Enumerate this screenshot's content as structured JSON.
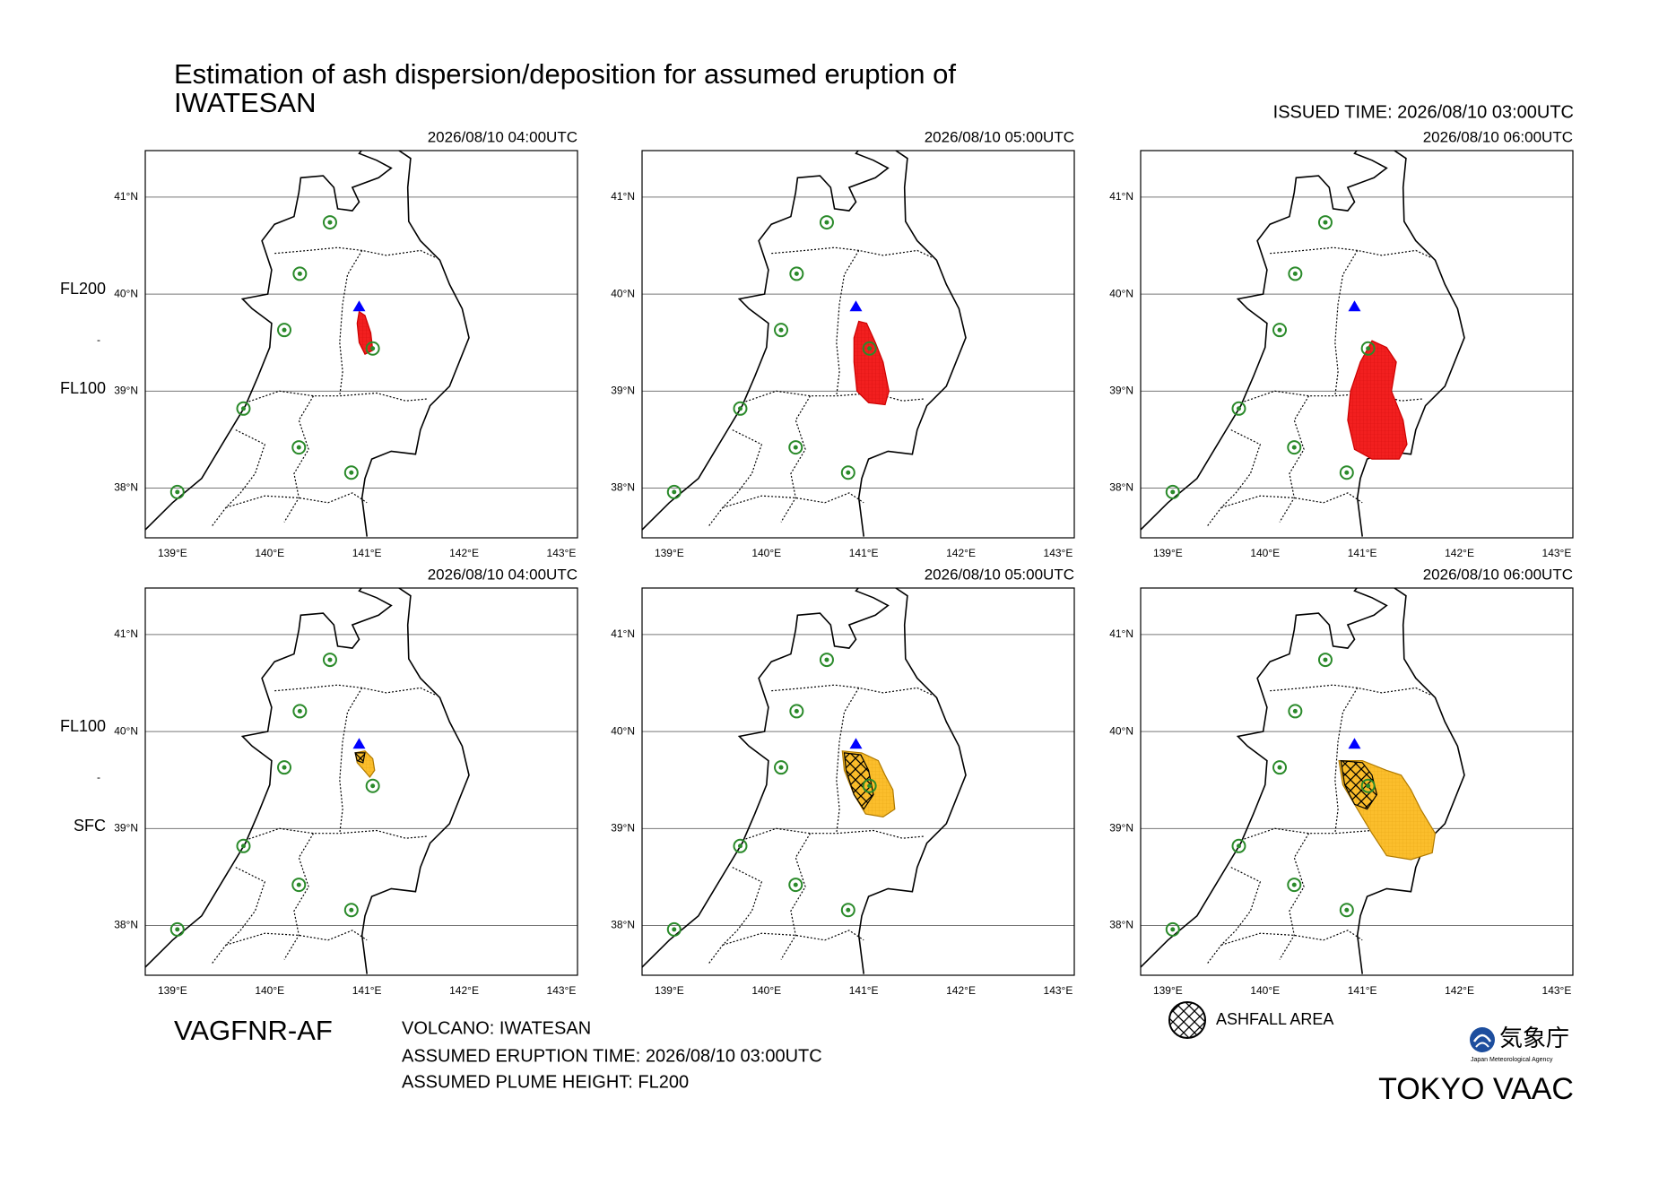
{
  "header": {
    "title": "Estimation of ash dispersion/deposition for assumed eruption of",
    "volcano_title": "IWATESAN",
    "issued": "ISSUED TIME: 2026/08/10 03:00UTC"
  },
  "rows": [
    {
      "top_label": "FL200",
      "separator": "-",
      "bottom_label": "FL100",
      "panels": [
        "2026/08/10 04:00UTC",
        "2026/08/10 05:00UTC",
        "2026/08/10 06:00UTC"
      ]
    },
    {
      "top_label": "FL100",
      "separator": "-",
      "bottom_label": "SFC",
      "panels": [
        "2026/08/10 04:00UTC",
        "2026/08/10 05:00UTC",
        "2026/08/10 06:00UTC"
      ]
    }
  ],
  "lon_labels": [
    "139°E",
    "140°E",
    "141°E",
    "142°E",
    "143°E"
  ],
  "lat_labels": [
    "38°N",
    "39°N",
    "40°N",
    "41°N"
  ],
  "footer": {
    "product": "VAGFNR-AF",
    "volcano": "VOLCANO: IWATESAN",
    "eruption_time": "ASSUMED ERUPTION TIME: 2026/08/10 03:00UTC",
    "plume_height": "ASSUMED PLUME HEIGHT: FL200",
    "legend": "ASHFALL AREA",
    "agency": "気象庁",
    "agency_en": "Japan Meteorological Agency",
    "vaac": "TOKYO VAAC"
  }
}
